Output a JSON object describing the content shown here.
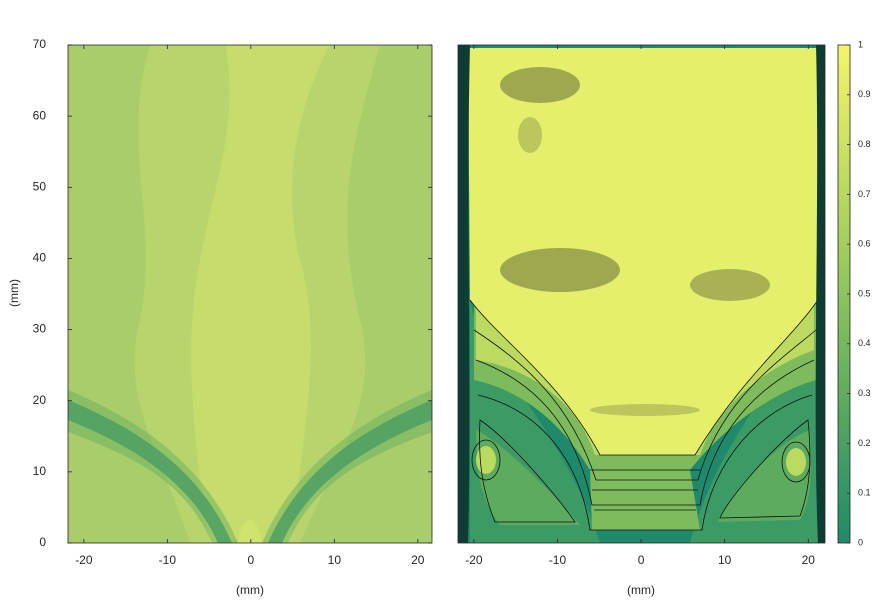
{
  "chart_data": [
    {
      "type": "contour",
      "xlabel": "(mm)",
      "ylabel": "(mm)",
      "xlim": [
        -21.9,
        21.7
      ],
      "ylim": [
        0,
        70
      ],
      "xticks": [
        -20,
        -10,
        0,
        10,
        20
      ],
      "yticks": [
        0,
        10,
        20,
        30,
        40,
        50,
        60,
        70
      ]
    },
    {
      "type": "contour",
      "xlabel": "(mm)",
      "xlim": [
        -21.9,
        22
      ],
      "ylim": [
        0,
        70
      ],
      "xticks": [
        -20,
        -10,
        0,
        10,
        20
      ]
    },
    {
      "type": "colorbar",
      "ylim": [
        0,
        1
      ],
      "yticks": [
        0,
        0.1,
        0.2,
        0.3,
        0.4,
        0.5,
        0.6,
        0.7,
        0.8,
        0.9,
        1
      ],
      "colors": [
        "#1f8a6b",
        "#3c9a65",
        "#5cab5f",
        "#7dbb5c",
        "#9ecb5e",
        "#bcd960",
        "#d8e765",
        "#f2f56a"
      ]
    }
  ]
}
